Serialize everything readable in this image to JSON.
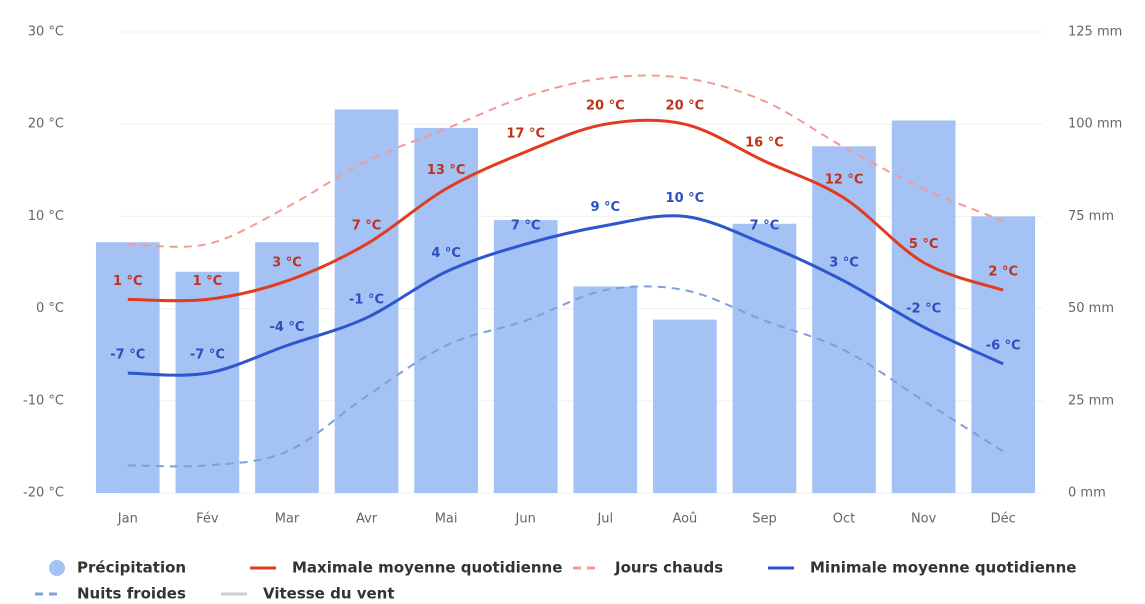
{
  "chart_data": {
    "type": "bar",
    "categories": [
      "Jan",
      "Fév",
      "Mar",
      "Avr",
      "Mai",
      "Jun",
      "Jul",
      "Aoû",
      "Sep",
      "Oct",
      "Nov",
      "Déc"
    ],
    "ylim": [
      -20,
      30
    ],
    "yticks": [
      {
        "value": -20,
        "label": "-20 °C"
      },
      {
        "value": -10,
        "label": "-10 °C"
      },
      {
        "value": 0,
        "label": "0 °C"
      },
      {
        "value": 10,
        "label": "10 °C"
      },
      {
        "value": 20,
        "label": "20 °C"
      },
      {
        "value": 30,
        "label": "30 °C"
      }
    ],
    "y2lim": [
      0,
      125
    ],
    "y2ticks": [
      {
        "value": 0,
        "label": "0 mm"
      },
      {
        "value": 25,
        "label": "25 mm"
      },
      {
        "value": 50,
        "label": "50 mm"
      },
      {
        "value": 75,
        "label": "75 mm"
      },
      {
        "value": 100,
        "label": "100 mm"
      },
      {
        "value": 125,
        "label": "125 mm"
      }
    ],
    "grid": true,
    "series": [
      {
        "name": "Précipitation",
        "type": "bar",
        "axis": "y2",
        "color": "#a4c2f4",
        "values": [
          68,
          60,
          68,
          104,
          99,
          74,
          56,
          47,
          73,
          94,
          101,
          75
        ]
      },
      {
        "name": "Maximale moyenne quotidienne",
        "type": "line",
        "color": "#e23b1e",
        "label_color": "#c0321a",
        "values": [
          1,
          1,
          3,
          7,
          13,
          17,
          20,
          20,
          16,
          12,
          5,
          2
        ],
        "value_labels": [
          "1 °C",
          "1 °C",
          "3 °C",
          "7 °C",
          "13 °C",
          "17 °C",
          "20 °C",
          "20 °C",
          "16 °C",
          "12 °C",
          "5 °C",
          "2 °C"
        ]
      },
      {
        "name": "Jours chauds",
        "type": "line",
        "dashed": true,
        "color": "#f49a94",
        "values": [
          7,
          7,
          11,
          16,
          19.5,
          23,
          25,
          25,
          22.5,
          17.5,
          13,
          9.5
        ]
      },
      {
        "name": "Minimale moyenne quotidienne",
        "type": "line",
        "color": "#2d56cf",
        "label_color": "#2a4fc0",
        "values": [
          -7,
          -7,
          -4,
          -1,
          4,
          7,
          9,
          10,
          7,
          3,
          -2,
          -6
        ],
        "value_labels": [
          "-7 °C",
          "-7 °C",
          "-4 °C",
          "-1 °C",
          "4 °C",
          "7 °C",
          "9 °C",
          "10 °C",
          "7 °C",
          "3 °C",
          "-2 °C",
          "-6 °C"
        ]
      },
      {
        "name": "Nuits froides",
        "type": "line",
        "dashed": true,
        "color": "#7f9fdc",
        "values": [
          -17,
          -17,
          -15.5,
          -9.5,
          -4,
          -1.3,
          2,
          2,
          -1.3,
          -4.5,
          -10,
          -15.5
        ]
      },
      {
        "name": "Vitesse du vent",
        "type": "line",
        "visible": false,
        "color": "#cccccc"
      }
    ]
  }
}
